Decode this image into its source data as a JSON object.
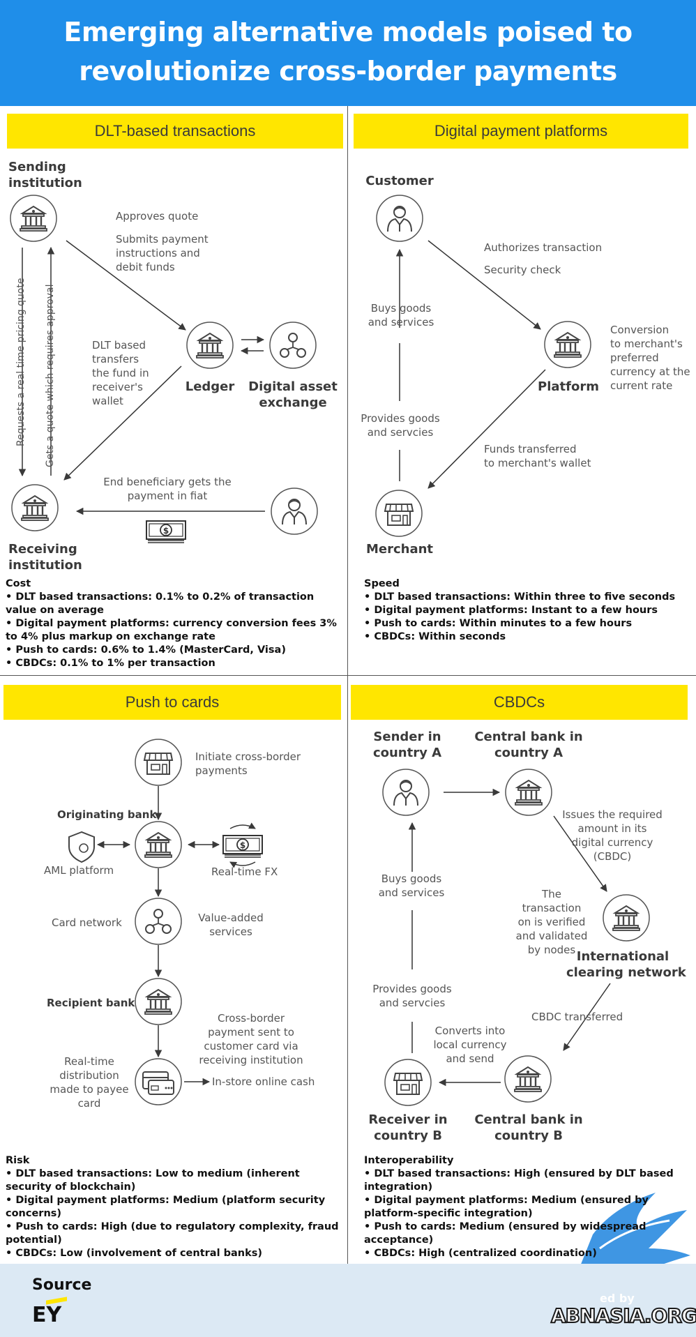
{
  "title_line1": "Emerging alternative models poised to",
  "title_line2": "revolutionize cross-border payments",
  "dlt": {
    "heading": "DLT-based transactions",
    "sending_institution": [
      "Sending",
      "institution"
    ],
    "approves_quote": "Approves quote",
    "submits_payment": [
      "Submits payment",
      "instructions and",
      "debit funds"
    ],
    "dlt_transfers": [
      "DLT based",
      "transfers",
      "the fund in",
      "receiver's",
      "wallet"
    ],
    "ledger": "Ledger",
    "digital_asset_exchange": [
      "Digital asset",
      "exchange"
    ],
    "requests_quote": "Requests a real time pricing quote",
    "gets_quote": "Gets a quote which requires approval",
    "end_beneficiary": [
      "End beneficiary gets the",
      "payment in fiat"
    ],
    "receiving_institution": [
      "Receiving",
      "institution"
    ]
  },
  "dpp": {
    "heading": "Digital payment platforms",
    "customer": "Customer",
    "authorizes": "Authorizes transaction",
    "security_check": "Security check",
    "buys_goods": [
      "Buys goods",
      "and services"
    ],
    "conversion": [
      "Conversion",
      "to merchant's",
      "preferred",
      "currency at the",
      "current rate"
    ],
    "platform": "Platform",
    "provides_goods": [
      "Provides goods",
      "and servcies"
    ],
    "funds_transferred": [
      "Funds transferred",
      "to merchant's wallet"
    ],
    "merchant": "Merchant"
  },
  "cost": {
    "heading": "Cost",
    "items": [
      "• DLT based transactions: 0.1% to 0.2% of transaction  value on average",
      "• Digital payment platforms: currency conversion fees  3% to 4% plus markup on exchange rate",
      "• Push to cards: 0.6% to 1.4% (MasterCard, Visa)",
      "• CBDCs: 0.1% to 1% per transaction"
    ]
  },
  "speed": {
    "heading": "Speed",
    "items": [
      "• DLT based transactions: Within three to five seconds",
      "• Digital payment platforms: Instant to a few hours",
      "• Push to cards: Within minutes to a few hours",
      "• CBDCs: Within seconds"
    ]
  },
  "ptc": {
    "heading": "Push to cards",
    "initiate": [
      "Initiate cross-border",
      "payments"
    ],
    "originating_bank": "Originating bank",
    "aml_platform": "AML platform",
    "realtime_fx": "Real-time FX",
    "card_network": "Card network",
    "value_added": [
      "Value-added",
      "services"
    ],
    "recipient_bank": "Recipient bank",
    "crossborder_payment": [
      "Cross-border",
      "payment sent to",
      "customer card via",
      "receiving institution"
    ],
    "realtime_distribution": [
      "Real-time",
      "distribution",
      "made to payee",
      "card"
    ],
    "instore": "In-store online cash"
  },
  "cbdc": {
    "heading": "CBDCs",
    "sender": [
      "Sender in",
      "country A"
    ],
    "cb_a": [
      "Central bank in",
      "country A"
    ],
    "issues": [
      "Issues the required",
      "amount in its",
      "digital currency",
      "(CBDC)"
    ],
    "buys_goods": [
      "Buys goods",
      "and services"
    ],
    "transaction_verified": [
      "The",
      "transaction",
      "on is verified",
      "and validated",
      "by nodes"
    ],
    "icn": [
      "International",
      "clearing network"
    ],
    "provides_goods": [
      "Provides goods",
      "and servcies"
    ],
    "cbdc_transferred": "CBDC transferred",
    "converts": [
      "Converts into",
      "local currency",
      "and send"
    ],
    "receiver": [
      "Receiver in",
      "country B"
    ],
    "cb_b": [
      "Central bank in",
      "country B"
    ]
  },
  "risk": {
    "heading": "Risk",
    "items": [
      "• DLT based transactions: Low to medium  (inherent security of blockchain)",
      "• Digital payment platforms: Medium  (platform security concerns)",
      "• Push to cards: High (due to regulatory complexity,  fraud potential)",
      "• CBDCs: Low (involvement of central banks)"
    ]
  },
  "interop": {
    "heading": "Interoperability",
    "items": [
      "• DLT based transactions: High  (ensured by DLT based integration)",
      "• Digital payment platforms: Medium  (ensured by platform-specific integration)",
      "• Push to cards: Medium (ensured by widespread acceptance)",
      "• CBDCs: High (centralized coordination)"
    ]
  },
  "footer": {
    "source_label": "Source",
    "source_name": "EY",
    "watermark": "ABNASIA.ORG",
    "watermark_small": "ed by"
  },
  "colors": {
    "header_blue": "#1f8ee9",
    "accent_yellow": "#ffe600",
    "footer_bg": "#dce9f4"
  }
}
